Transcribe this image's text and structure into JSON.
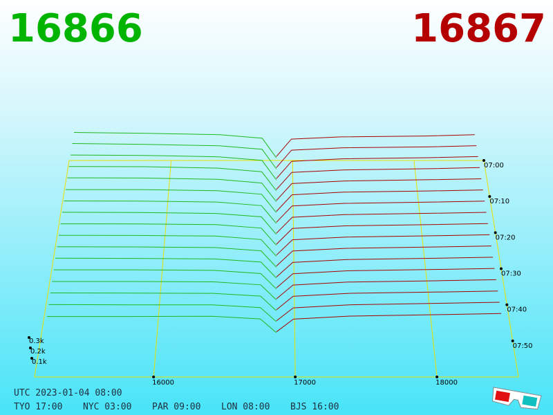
{
  "chart_data": {
    "type": "depth3d",
    "bid_price": 16866,
    "ask_price": 16867,
    "bid_color": "#1fb81f",
    "ask_color": "#a80000",
    "bid_title_color": "#00b400",
    "ask_title_color": "#b40000",
    "xlim": [
      15160,
      18575
    ],
    "xticks": [
      16000,
      17000,
      18000
    ],
    "zlim": [
      0,
      300
    ],
    "zticks": [
      {
        "value": 100,
        "label": "0.1k"
      },
      {
        "value": 200,
        "label": "0.2k"
      },
      {
        "value": 300,
        "label": "0.3k"
      }
    ],
    "tlim": [
      "07:00",
      "08:00"
    ],
    "tticks": [
      "07:00",
      "07:10",
      "07:20",
      "07:30",
      "07:40",
      "07:50"
    ],
    "bid_prices": [
      15200,
      15800,
      16400,
      16750,
      16866
    ],
    "ask_prices": [
      16867,
      16990,
      17400,
      18100,
      18500
    ],
    "snapshots": [
      {
        "time": "07:00",
        "bid": [
          315,
          305,
          290,
          250,
          30
        ],
        "ask": [
          45,
          240,
          265,
          275,
          290
        ]
      },
      {
        "time": "07:03",
        "bid": [
          310,
          300,
          285,
          245,
          28
        ],
        "ask": [
          42,
          236,
          262,
          272,
          286
        ]
      },
      {
        "time": "07:06",
        "bid": [
          300,
          295,
          280,
          240,
          26
        ],
        "ask": [
          40,
          230,
          258,
          270,
          282
        ]
      },
      {
        "time": "07:09",
        "bid": [
          290,
          288,
          272,
          232,
          25
        ],
        "ask": [
          38,
          225,
          252,
          266,
          278
        ]
      },
      {
        "time": "07:12",
        "bid": [
          282,
          280,
          266,
          226,
          24
        ],
        "ask": [
          36,
          220,
          248,
          262,
          272
        ]
      },
      {
        "time": "07:15",
        "bid": [
          270,
          270,
          258,
          220,
          22
        ],
        "ask": [
          35,
          214,
          242,
          256,
          266
        ]
      },
      {
        "time": "07:18",
        "bid": [
          262,
          260,
          250,
          212,
          21
        ],
        "ask": [
          34,
          208,
          236,
          250,
          260
        ]
      },
      {
        "time": "07:21",
        "bid": [
          255,
          252,
          242,
          206,
          20
        ],
        "ask": [
          32,
          202,
          230,
          244,
          254
        ]
      },
      {
        "time": "07:24",
        "bid": [
          245,
          244,
          236,
          200,
          19
        ],
        "ask": [
          30,
          196,
          224,
          238,
          248
        ]
      },
      {
        "time": "07:27",
        "bid": [
          236,
          235,
          228,
          192,
          18
        ],
        "ask": [
          29,
          190,
          218,
          232,
          242
        ]
      },
      {
        "time": "07:30",
        "bid": [
          228,
          226,
          220,
          186,
          17
        ],
        "ask": [
          28,
          184,
          212,
          226,
          236
        ]
      },
      {
        "time": "07:33",
        "bid": [
          220,
          218,
          212,
          180,
          16
        ],
        "ask": [
          26,
          176,
          206,
          220,
          230
        ]
      },
      {
        "time": "07:36",
        "bid": [
          210,
          210,
          204,
          172,
          15
        ],
        "ask": [
          25,
          170,
          200,
          214,
          224
        ]
      },
      {
        "time": "07:39",
        "bid": [
          200,
          200,
          196,
          166,
          14
        ],
        "ask": [
          24,
          164,
          194,
          208,
          218
        ]
      },
      {
        "time": "07:42",
        "bid": [
          192,
          190,
          188,
          160,
          13
        ],
        "ask": [
          22,
          158,
          188,
          202,
          212
        ]
      },
      {
        "time": "07:45",
        "bid": [
          182,
          180,
          180,
          152,
          12
        ],
        "ask": [
          20,
          150,
          180,
          196,
          206
        ]
      },
      {
        "time": "07:48",
        "bid": [
          170,
          170,
          172,
          146,
          10
        ],
        "ask": [
          18,
          144,
          174,
          190,
          200
        ]
      }
    ],
    "footer": {
      "utc": "UTC 2023-01-04 08:00",
      "clocks": [
        "TYO 17:00",
        "NYC 03:00",
        "PAR 09:00",
        "LON 08:00",
        "BJS 16:00"
      ]
    }
  }
}
